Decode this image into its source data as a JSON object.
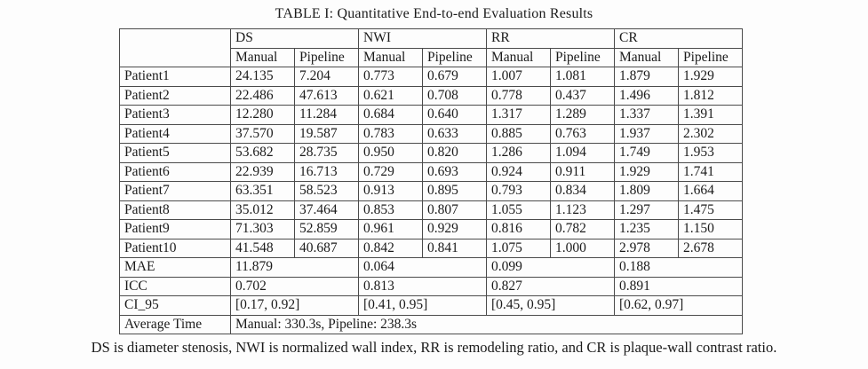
{
  "title": "TABLE I: Quantitative End-to-end Evaluation Results",
  "footnote": "DS is diameter stenosis, NWI is normalized wall index, RR is remodeling ratio, and CR is plaque-wall contrast ratio.",
  "table": {
    "group_headers": [
      "DS",
      "NWI",
      "RR",
      "CR"
    ],
    "sub_headers": [
      "Manual",
      "Pipeline",
      "Manual",
      "Pipeline",
      "Manual",
      "Pipeline",
      "Manual",
      "Pipeline"
    ],
    "patient_rows": [
      {
        "label": "Patient1",
        "values": [
          "24.135",
          "7.204",
          "0.773",
          "0.679",
          "1.007",
          "1.081",
          "1.879",
          "1.929"
        ]
      },
      {
        "label": "Patient2",
        "values": [
          "22.486",
          "47.613",
          "0.621",
          "0.708",
          "0.778",
          "0.437",
          "1.496",
          "1.812"
        ]
      },
      {
        "label": "Patient3",
        "values": [
          "12.280",
          "11.284",
          "0.684",
          "0.640",
          "1.317",
          "1.289",
          "1.337",
          "1.391"
        ]
      },
      {
        "label": "Patient4",
        "values": [
          "37.570",
          "19.587",
          "0.783",
          "0.633",
          "0.885",
          "0.763",
          "1.937",
          "2.302"
        ]
      },
      {
        "label": "Patient5",
        "values": [
          "53.682",
          "28.735",
          "0.950",
          "0.820",
          "1.286",
          "1.094",
          "1.749",
          "1.953"
        ]
      },
      {
        "label": "Patient6",
        "values": [
          "22.939",
          "16.713",
          "0.729",
          "0.693",
          "0.924",
          "0.911",
          "1.929",
          "1.741"
        ]
      },
      {
        "label": "Patient7",
        "values": [
          "63.351",
          "58.523",
          "0.913",
          "0.895",
          "0.793",
          "0.834",
          "1.809",
          "1.664"
        ]
      },
      {
        "label": "Patient8",
        "values": [
          "35.012",
          "37.464",
          "0.853",
          "0.807",
          "1.055",
          "1.123",
          "1.297",
          "1.475"
        ]
      },
      {
        "label": "Patient9",
        "values": [
          "71.303",
          "52.859",
          "0.961",
          "0.929",
          "0.816",
          "0.782",
          "1.235",
          "1.150"
        ]
      },
      {
        "label": "Patient10",
        "values": [
          "41.548",
          "40.687",
          "0.842",
          "0.841",
          "1.075",
          "1.000",
          "2.978",
          "2.678"
        ]
      }
    ],
    "metric_rows": [
      {
        "label": "MAE",
        "values": [
          "11.879",
          "0.064",
          "0.099",
          "0.188"
        ]
      },
      {
        "label": "ICC",
        "values": [
          "0.702",
          "0.813",
          "0.827",
          "0.891"
        ]
      },
      {
        "label": "CI_95",
        "values": [
          "[0.17, 0.92]",
          "[0.41, 0.95]",
          "[0.45, 0.95]",
          "[0.62, 0.97]"
        ]
      }
    ],
    "average_time_label": "Average Time",
    "average_time_value": "Manual: 330.3s, Pipeline: 238.3s"
  }
}
